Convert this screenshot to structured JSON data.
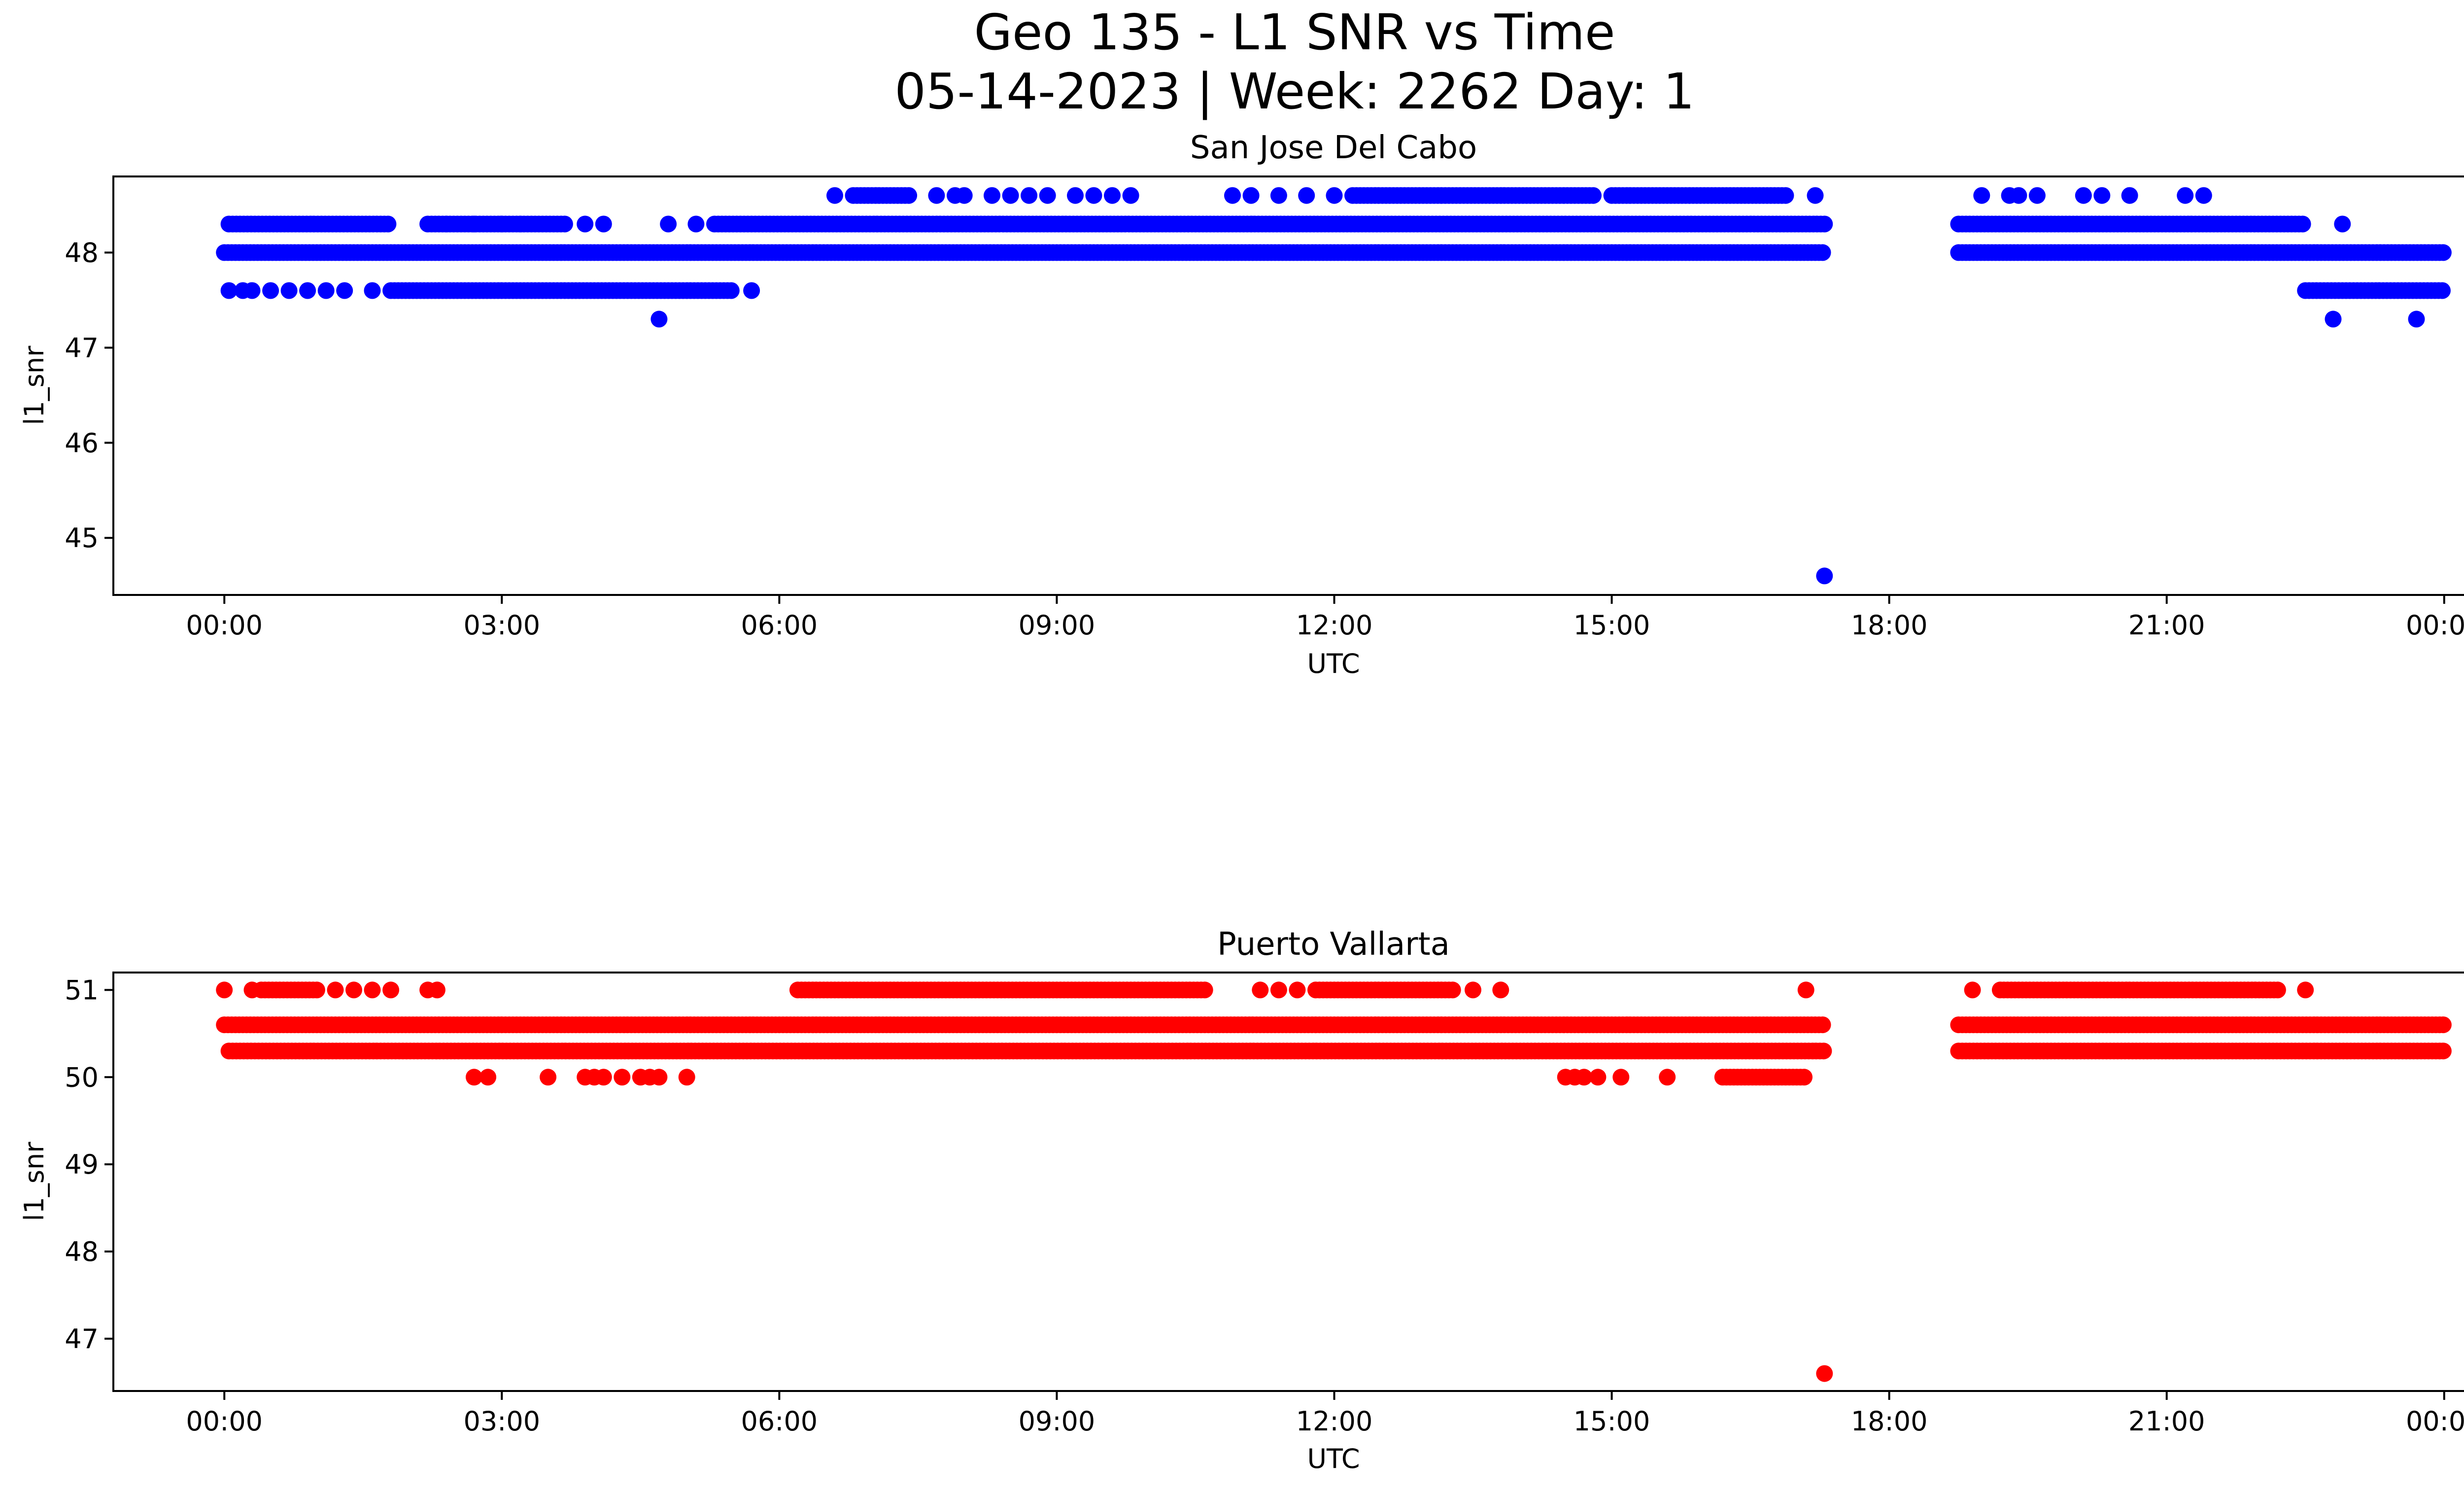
{
  "suptitle": [
    "Geo 135 - L1 SNR vs Time",
    "05-14-2023 | Week: 2262 Day: 1"
  ],
  "chart_data": [
    {
      "type": "scatter",
      "title": "San Jose Del Cabo",
      "xlabel": "UTC",
      "ylabel": "l1_snr",
      "color": "#0000ff",
      "x_unit": "hours UTC",
      "xlim": [
        -1.2,
        25.2
      ],
      "ylim": [
        44.4,
        48.8
      ],
      "xticks": [
        {
          "value": 0,
          "label": "00:00"
        },
        {
          "value": 3,
          "label": "03:00"
        },
        {
          "value": 6,
          "label": "06:00"
        },
        {
          "value": 9,
          "label": "09:00"
        },
        {
          "value": 12,
          "label": "12:00"
        },
        {
          "value": 15,
          "label": "15:00"
        },
        {
          "value": 18,
          "label": "18:00"
        },
        {
          "value": 21,
          "label": "21:00"
        },
        {
          "value": 24,
          "label": "00:00"
        }
      ],
      "yticks": [
        {
          "value": 45,
          "label": "45"
        },
        {
          "value": 46,
          "label": "46"
        },
        {
          "value": 47,
          "label": "47"
        },
        {
          "value": 48,
          "label": "48"
        }
      ],
      "grid": false,
      "legend": "none",
      "series": [
        {
          "values": [
            {
              "x": 0,
              "x_end": 17.3,
              "y": 48.0
            },
            {
              "x": 18.75,
              "x_end": 24.0,
              "y": 48.0
            },
            {
              "x": 0.05,
              "x_end": 1.8,
              "y": 48.3
            },
            {
              "x": 2.2,
              "x_end": 3.7,
              "y": 48.3
            },
            {
              "x": 5.3,
              "x_end": 17.3,
              "y": 48.3
            },
            {
              "x": 18.75,
              "x_end": 22.5,
              "y": 48.3
            },
            {
              "x": 1.8,
              "x_end": 5.5,
              "y": 47.6
            },
            {
              "x": 22.5,
              "x_end": 24.0,
              "y": 47.6
            },
            {
              "x": 6.8,
              "x_end": 7.4,
              "y": 48.6
            },
            {
              "x": 12.2,
              "x_end": 14.8,
              "y": 48.6
            },
            {
              "x": 15.0,
              "x_end": 16.9,
              "y": 48.6
            },
            {
              "x": 0.05,
              "y": 47.6
            },
            {
              "x": 0.2,
              "y": 47.6
            },
            {
              "x": 0.3,
              "y": 47.6
            },
            {
              "x": 0.5,
              "y": 47.6
            },
            {
              "x": 0.7,
              "y": 47.6
            },
            {
              "x": 0.9,
              "y": 47.6
            },
            {
              "x": 1.1,
              "y": 47.6
            },
            {
              "x": 1.3,
              "y": 47.6
            },
            {
              "x": 1.6,
              "y": 47.6
            },
            {
              "x": 5.7,
              "y": 47.6
            },
            {
              "x": 2.4,
              "y": 48.3
            },
            {
              "x": 2.7,
              "y": 48.3
            },
            {
              "x": 3.0,
              "y": 48.3
            },
            {
              "x": 3.2,
              "y": 48.3
            },
            {
              "x": 3.9,
              "y": 48.3
            },
            {
              "x": 4.1,
              "y": 48.3
            },
            {
              "x": 4.8,
              "y": 48.3
            },
            {
              "x": 5.1,
              "y": 48.3
            },
            {
              "x": 22.9,
              "y": 48.3
            },
            {
              "x": 4.7,
              "y": 47.3
            },
            {
              "x": 22.8,
              "y": 47.3
            },
            {
              "x": 23.7,
              "y": 47.3
            },
            {
              "x": 17.3,
              "y": 44.6
            },
            {
              "x": 6.6,
              "y": 48.6
            },
            {
              "x": 7.7,
              "y": 48.6
            },
            {
              "x": 7.9,
              "y": 48.6
            },
            {
              "x": 8.0,
              "y": 48.6
            },
            {
              "x": 8.3,
              "y": 48.6
            },
            {
              "x": 8.5,
              "y": 48.6
            },
            {
              "x": 8.7,
              "y": 48.6
            },
            {
              "x": 8.9,
              "y": 48.6
            },
            {
              "x": 9.2,
              "y": 48.6
            },
            {
              "x": 9.4,
              "y": 48.6
            },
            {
              "x": 9.6,
              "y": 48.6
            },
            {
              "x": 9.8,
              "y": 48.6
            },
            {
              "x": 10.9,
              "y": 48.6
            },
            {
              "x": 11.1,
              "y": 48.6
            },
            {
              "x": 11.4,
              "y": 48.6
            },
            {
              "x": 11.7,
              "y": 48.6
            },
            {
              "x": 12.0,
              "y": 48.6
            },
            {
              "x": 17.2,
              "y": 48.6
            },
            {
              "x": 19.0,
              "y": 48.6
            },
            {
              "x": 19.3,
              "y": 48.6
            },
            {
              "x": 19.4,
              "y": 48.6
            },
            {
              "x": 19.6,
              "y": 48.6
            },
            {
              "x": 20.1,
              "y": 48.6
            },
            {
              "x": 20.3,
              "y": 48.6
            },
            {
              "x": 20.6,
              "y": 48.6
            },
            {
              "x": 21.2,
              "y": 48.6
            },
            {
              "x": 21.4,
              "y": 48.6
            }
          ]
        }
      ]
    },
    {
      "type": "scatter",
      "title": "Puerto Vallarta",
      "xlabel": "UTC",
      "ylabel": "l1_snr",
      "color": "#ff0000",
      "x_unit": "hours UTC",
      "xlim": [
        -1.2,
        25.2
      ],
      "ylim": [
        46.4,
        51.2
      ],
      "xticks": [
        {
          "value": 0,
          "label": "00:00"
        },
        {
          "value": 3,
          "label": "03:00"
        },
        {
          "value": 6,
          "label": "06:00"
        },
        {
          "value": 9,
          "label": "09:00"
        },
        {
          "value": 12,
          "label": "12:00"
        },
        {
          "value": 15,
          "label": "15:00"
        },
        {
          "value": 18,
          "label": "18:00"
        },
        {
          "value": 21,
          "label": "21:00"
        },
        {
          "value": 24,
          "label": "00:00"
        }
      ],
      "yticks": [
        {
          "value": 47,
          "label": "47"
        },
        {
          "value": 48,
          "label": "48"
        },
        {
          "value": 49,
          "label": "49"
        },
        {
          "value": 50,
          "label": "50"
        },
        {
          "value": 51,
          "label": "51"
        }
      ],
      "grid": false,
      "legend": "none",
      "series": [
        {
          "values": [
            {
              "x": 0,
              "x_end": 17.3,
              "y": 50.6
            },
            {
              "x": 18.75,
              "x_end": 24.0,
              "y": 50.6
            },
            {
              "x": 0.05,
              "x_end": 17.3,
              "y": 50.3
            },
            {
              "x": 18.75,
              "x_end": 24.0,
              "y": 50.3
            },
            {
              "x": 0.4,
              "x_end": 1.0,
              "y": 51.0
            },
            {
              "x": 6.2,
              "x_end": 10.6,
              "y": 51.0
            },
            {
              "x": 11.8,
              "x_end": 13.3,
              "y": 51.0
            },
            {
              "x": 19.2,
              "x_end": 22.2,
              "y": 51.0
            },
            {
              "x": 16.2,
              "x_end": 17.1,
              "y": 50.0
            },
            {
              "x": 0.0,
              "y": 51.0
            },
            {
              "x": 0.3,
              "y": 51.0
            },
            {
              "x": 1.2,
              "y": 51.0
            },
            {
              "x": 1.4,
              "y": 51.0
            },
            {
              "x": 1.6,
              "y": 51.0
            },
            {
              "x": 1.8,
              "y": 51.0
            },
            {
              "x": 2.2,
              "y": 51.0
            },
            {
              "x": 2.3,
              "y": 51.0
            },
            {
              "x": 11.2,
              "y": 51.0
            },
            {
              "x": 11.4,
              "y": 51.0
            },
            {
              "x": 11.6,
              "y": 51.0
            },
            {
              "x": 13.5,
              "y": 51.0
            },
            {
              "x": 13.8,
              "y": 51.0
            },
            {
              "x": 17.1,
              "y": 51.0
            },
            {
              "x": 18.9,
              "y": 51.0
            },
            {
              "x": 22.5,
              "y": 51.0
            },
            {
              "x": 2.7,
              "y": 50.0
            },
            {
              "x": 2.85,
              "y": 50.0
            },
            {
              "x": 3.5,
              "y": 50.0
            },
            {
              "x": 3.9,
              "y": 50.0
            },
            {
              "x": 4.0,
              "y": 50.0
            },
            {
              "x": 4.1,
              "y": 50.0
            },
            {
              "x": 4.3,
              "y": 50.0
            },
            {
              "x": 4.5,
              "y": 50.0
            },
            {
              "x": 4.6,
              "y": 50.0
            },
            {
              "x": 4.7,
              "y": 50.0
            },
            {
              "x": 5.0,
              "y": 50.0
            },
            {
              "x": 14.5,
              "y": 50.0
            },
            {
              "x": 14.6,
              "y": 50.0
            },
            {
              "x": 14.7,
              "y": 50.0
            },
            {
              "x": 14.85,
              "y": 50.0
            },
            {
              "x": 15.1,
              "y": 50.0
            },
            {
              "x": 15.6,
              "y": 50.0
            },
            {
              "x": 17.3,
              "y": 46.6
            }
          ]
        }
      ]
    }
  ]
}
